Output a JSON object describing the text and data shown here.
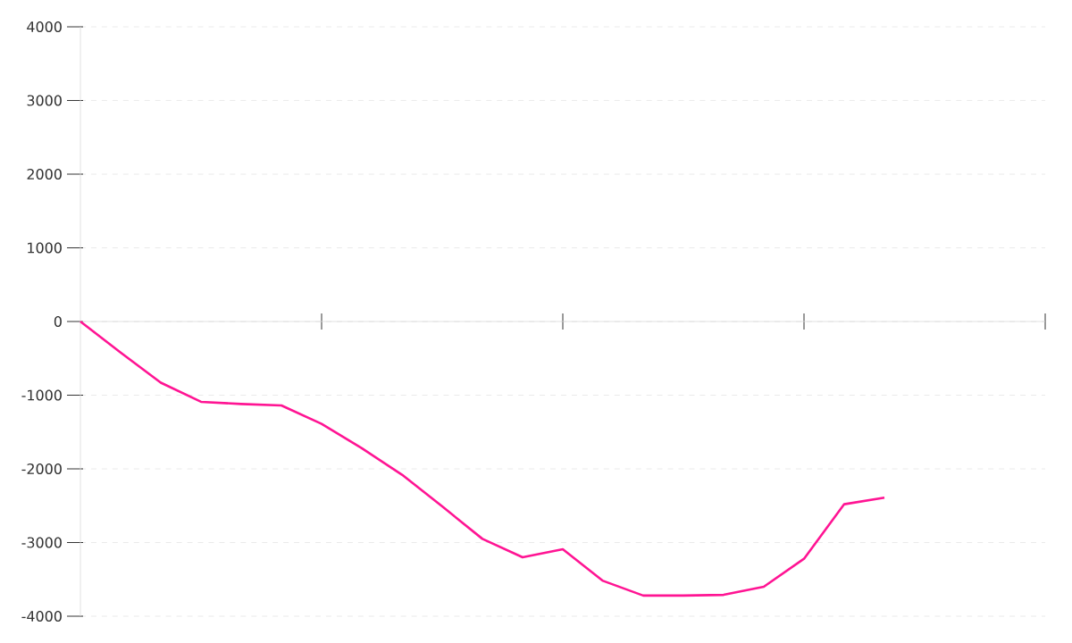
{
  "chart_data": {
    "type": "line",
    "categories": [
      null,
      null,
      null,
      null,
      null,
      null,
      null,
      null,
      null,
      null,
      null,
      null,
      null,
      null,
      null,
      null,
      null,
      null,
      null,
      null,
      null,
      null,
      null,
      null,
      null
    ],
    "series": [
      {
        "color": "#ff1493",
        "values": [
          0,
          -420,
          -830,
          -1090,
          -1120,
          -1140,
          -1390,
          -1720,
          -2080,
          -2510,
          -2950,
          -3200,
          -3090,
          -3520,
          -3720,
          -3720,
          -3710,
          -3600,
          -3220,
          -2480,
          -2390,
          null,
          null,
          null,
          null
        ]
      }
    ],
    "ylim": [
      -4000,
      4000
    ],
    "yticks": [
      -4000,
      -3000,
      -2000,
      -1000,
      0,
      1000,
      2000,
      3000,
      4000
    ],
    "grid": "y",
    "marker": "none",
    "line_style": "solid"
  }
}
